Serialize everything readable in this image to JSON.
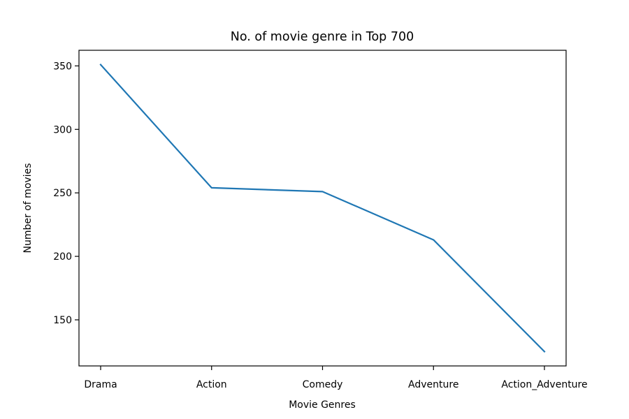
{
  "chart_data": {
    "type": "line",
    "title": "No. of movie genre in Top 700",
    "xlabel": "Movie Genres",
    "ylabel": "Number of movies",
    "categories": [
      "Drama",
      "Action",
      "Comedy",
      "Adventure",
      "Action_Adventure"
    ],
    "series": [
      {
        "values": [
          351,
          254,
          251,
          213,
          125
        ],
        "color": "#1f77b4"
      }
    ],
    "ylim": [
      113.7,
      362.3
    ],
    "yticks": [
      150,
      200,
      250,
      300,
      350
    ],
    "grid": false
  }
}
